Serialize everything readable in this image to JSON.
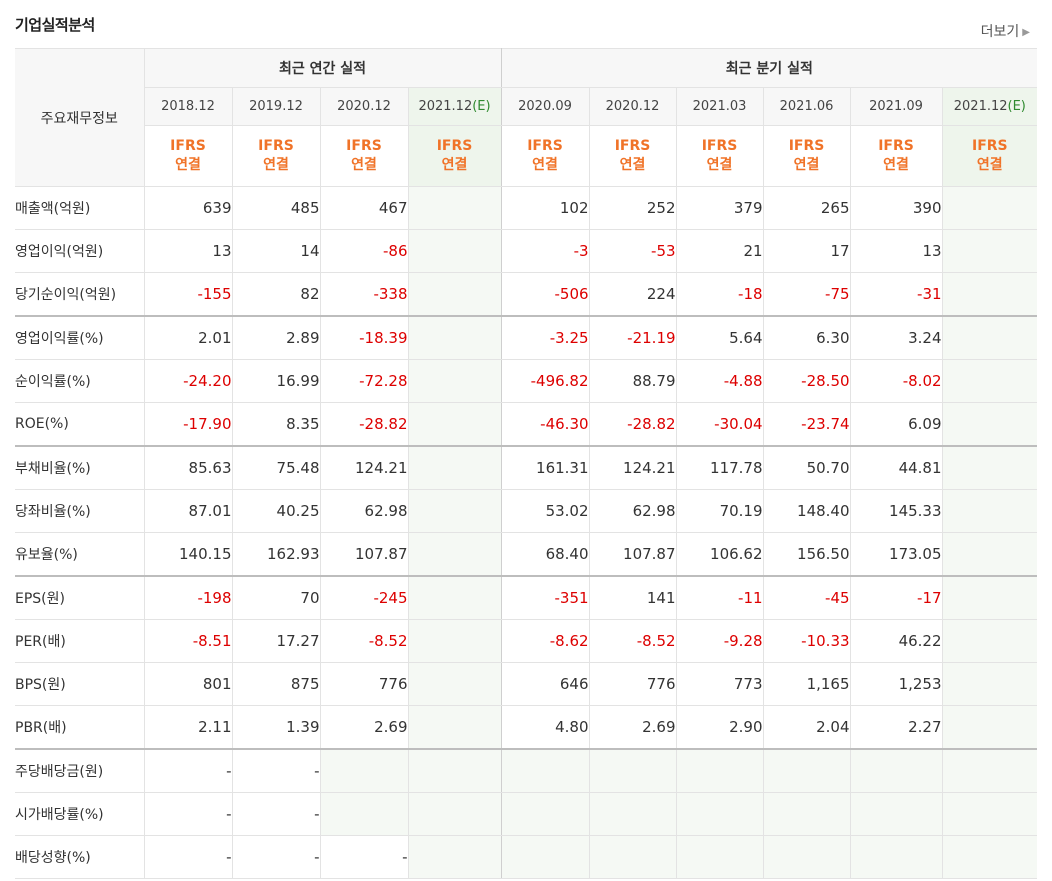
{
  "section_title": "기업실적분석",
  "more_link": "더보기",
  "corner_label": "주요재무정보",
  "groups": {
    "annual": "최근 연간 실적",
    "quarterly": "최근 분기 실적"
  },
  "periods": [
    "2018.12",
    "2019.12",
    "2020.12",
    "2021.12",
    "2020.09",
    "2020.12",
    "2021.03",
    "2021.06",
    "2021.09",
    "2021.12"
  ],
  "estimate_mark": "(E)",
  "standard_line1": "IFRS",
  "standard_line2": "연결",
  "rows": [
    {
      "label": "매출액(억원)",
      "values": [
        "639",
        "485",
        "467",
        "",
        "102",
        "252",
        "379",
        "265",
        "390",
        ""
      ]
    },
    {
      "label": "영업이익(억원)",
      "values": [
        "13",
        "14",
        "-86",
        "",
        "-3",
        "-53",
        "21",
        "17",
        "13",
        ""
      ]
    },
    {
      "label": "당기순이익(억원)",
      "values": [
        "-155",
        "82",
        "-338",
        "",
        "-506",
        "224",
        "-18",
        "-75",
        "-31",
        ""
      ]
    },
    {
      "label": "영업이익률(%)",
      "values": [
        "2.01",
        "2.89",
        "-18.39",
        "",
        "-3.25",
        "-21.19",
        "5.64",
        "6.30",
        "3.24",
        ""
      ]
    },
    {
      "label": "순이익률(%)",
      "values": [
        "-24.20",
        "16.99",
        "-72.28",
        "",
        "-496.82",
        "88.79",
        "-4.88",
        "-28.50",
        "-8.02",
        ""
      ]
    },
    {
      "label": "ROE(%)",
      "values": [
        "-17.90",
        "8.35",
        "-28.82",
        "",
        "-46.30",
        "-28.82",
        "-30.04",
        "-23.74",
        "6.09",
        ""
      ]
    },
    {
      "label": "부채비율(%)",
      "values": [
        "85.63",
        "75.48",
        "124.21",
        "",
        "161.31",
        "124.21",
        "117.78",
        "50.70",
        "44.81",
        ""
      ]
    },
    {
      "label": "당좌비율(%)",
      "values": [
        "87.01",
        "40.25",
        "62.98",
        "",
        "53.02",
        "62.98",
        "70.19",
        "148.40",
        "145.33",
        ""
      ]
    },
    {
      "label": "유보율(%)",
      "values": [
        "140.15",
        "162.93",
        "107.87",
        "",
        "68.40",
        "107.87",
        "106.62",
        "156.50",
        "173.05",
        ""
      ]
    },
    {
      "label": "EPS(원)",
      "values": [
        "-198",
        "70",
        "-245",
        "",
        "-351",
        "141",
        "-11",
        "-45",
        "-17",
        ""
      ]
    },
    {
      "label": "PER(배)",
      "values": [
        "-8.51",
        "17.27",
        "-8.52",
        "",
        "-8.62",
        "-8.52",
        "-9.28",
        "-10.33",
        "46.22",
        ""
      ]
    },
    {
      "label": "BPS(원)",
      "values": [
        "801",
        "875",
        "776",
        "",
        "646",
        "776",
        "773",
        "1,165",
        "1,253",
        ""
      ]
    },
    {
      "label": "PBR(배)",
      "values": [
        "2.11",
        "1.39",
        "2.69",
        "",
        "4.80",
        "2.69",
        "2.90",
        "2.04",
        "2.27",
        ""
      ]
    },
    {
      "label": "주당배당금(원)",
      "values": [
        "-",
        "-",
        "",
        "",
        "",
        "",
        "",
        "",
        "",
        ""
      ]
    },
    {
      "label": "시가배당률(%)",
      "values": [
        "-",
        "-",
        "",
        "",
        "",
        "",
        "",
        "",
        "",
        ""
      ]
    },
    {
      "label": "배당성향(%)",
      "values": [
        "-",
        "-",
        "-",
        "",
        "",
        "",
        "",
        "",
        "",
        ""
      ]
    }
  ]
}
